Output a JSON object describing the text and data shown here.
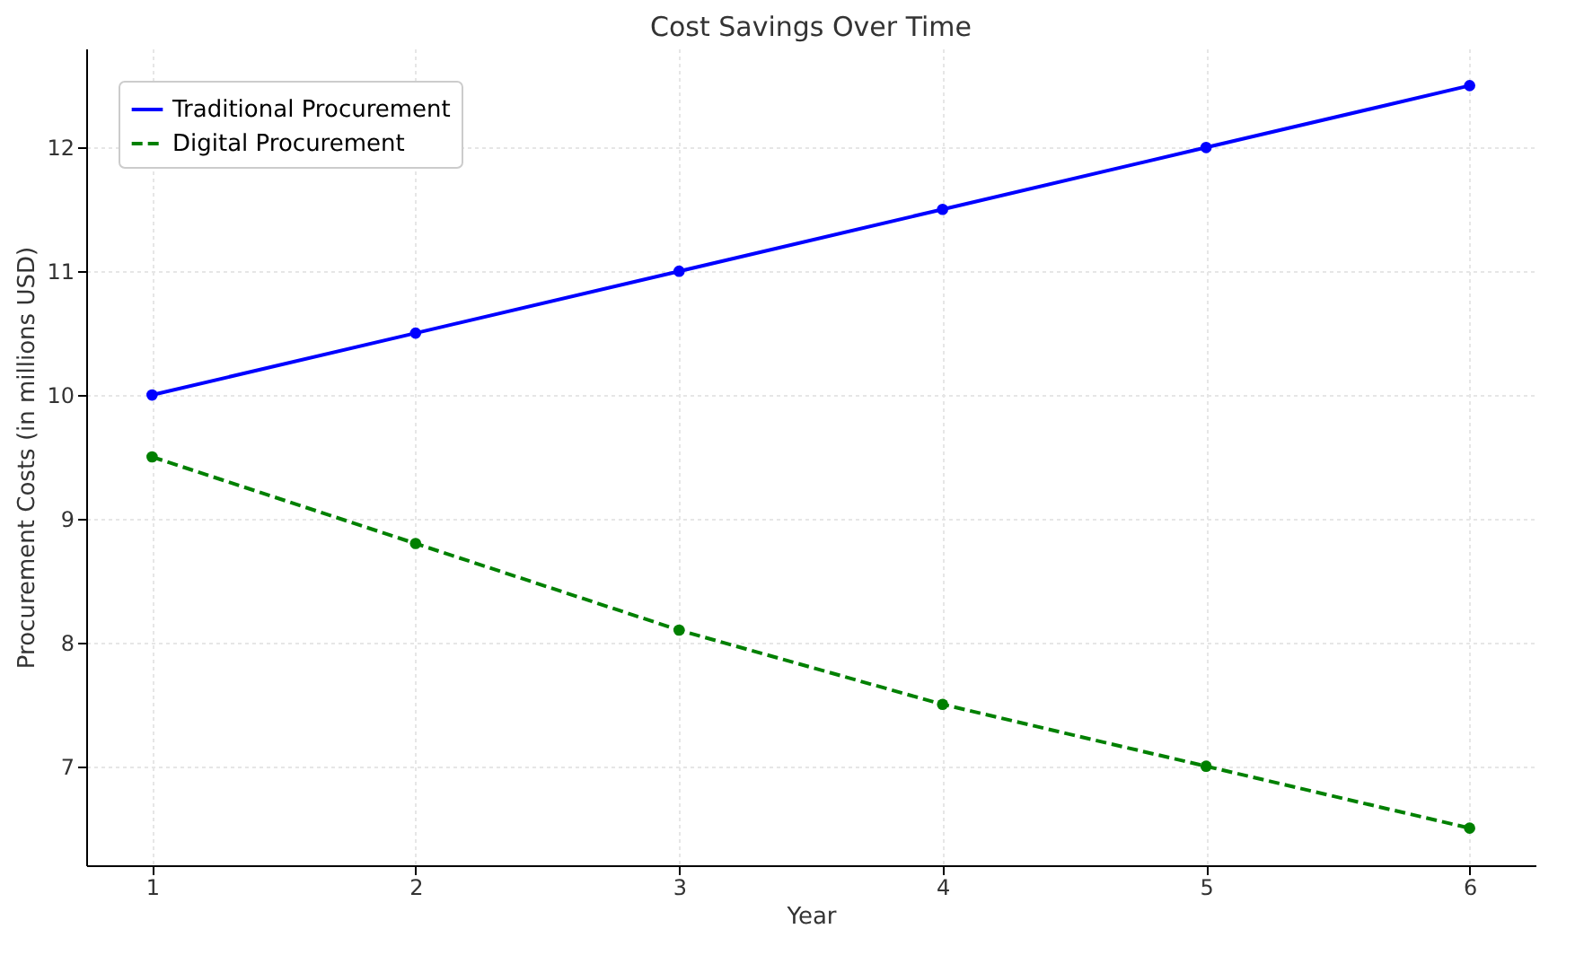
{
  "chart_data": {
    "type": "line",
    "title": "Cost Savings Over Time",
    "xlabel": "Year",
    "ylabel": "Procurement Costs (in millions USD)",
    "x": [
      1,
      2,
      3,
      4,
      5,
      6
    ],
    "series": [
      {
        "name": "Traditional Procurement",
        "color": "#0000ff",
        "values": [
          10,
          10.5,
          11,
          11.5,
          12,
          12.5
        ],
        "line_style": "solid"
      },
      {
        "name": "Digital Procurement",
        "color": "#008000",
        "values": [
          9.5,
          8.8,
          8.1,
          7.5,
          7.0,
          6.5
        ],
        "line_style": "dashed"
      }
    ],
    "xlim": [
      0.75,
      6.25
    ],
    "xticks": [
      1,
      2,
      3,
      4,
      5,
      6
    ],
    "ylim": [
      6.2,
      12.8
    ],
    "yticks": [
      7,
      8,
      9,
      10,
      11,
      12
    ],
    "grid": true,
    "legend": "top left",
    "marker": "circle"
  }
}
